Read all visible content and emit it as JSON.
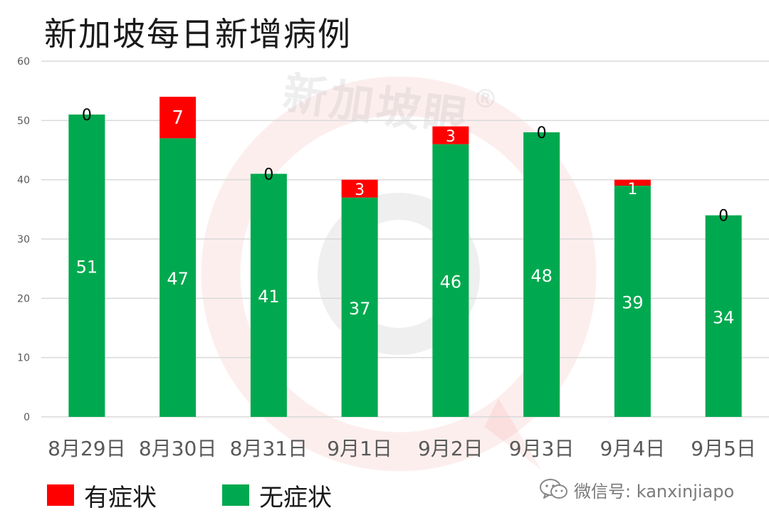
{
  "title": "新加坡每日新增病例",
  "watermark": {
    "text": "新加坡眼",
    "registered_mark": "®"
  },
  "chart_data": {
    "type": "bar",
    "stacked": true,
    "title": "新加坡每日新增病例",
    "categories": [
      "8月29日",
      "8月30日",
      "8月31日",
      "9月1日",
      "9月2日",
      "9月3日",
      "9月4日",
      "9月5日"
    ],
    "series": [
      {
        "name": "无症状",
        "color": "#00a94f",
        "values": [
          51,
          47,
          41,
          37,
          46,
          48,
          39,
          34
        ]
      },
      {
        "name": "有症状",
        "color": "#ff0000",
        "values": [
          0,
          7,
          0,
          3,
          3,
          0,
          1,
          0
        ]
      }
    ],
    "ylim": [
      0,
      60
    ],
    "yticks": [
      0,
      10,
      20,
      30,
      40,
      50,
      60
    ],
    "grid": true,
    "legend_position": "bottom-left",
    "xlabel": "",
    "ylabel": ""
  },
  "legend": {
    "symptomatic_label": "有症状",
    "asymptomatic_label": "无症状"
  },
  "credit": {
    "text": "微信号: kanxinjiapo",
    "icon": "wechat-icon"
  },
  "colors": {
    "asymptomatic": "#00a94f",
    "symptomatic": "#ff0000",
    "watermark": "#f2b8b8"
  }
}
